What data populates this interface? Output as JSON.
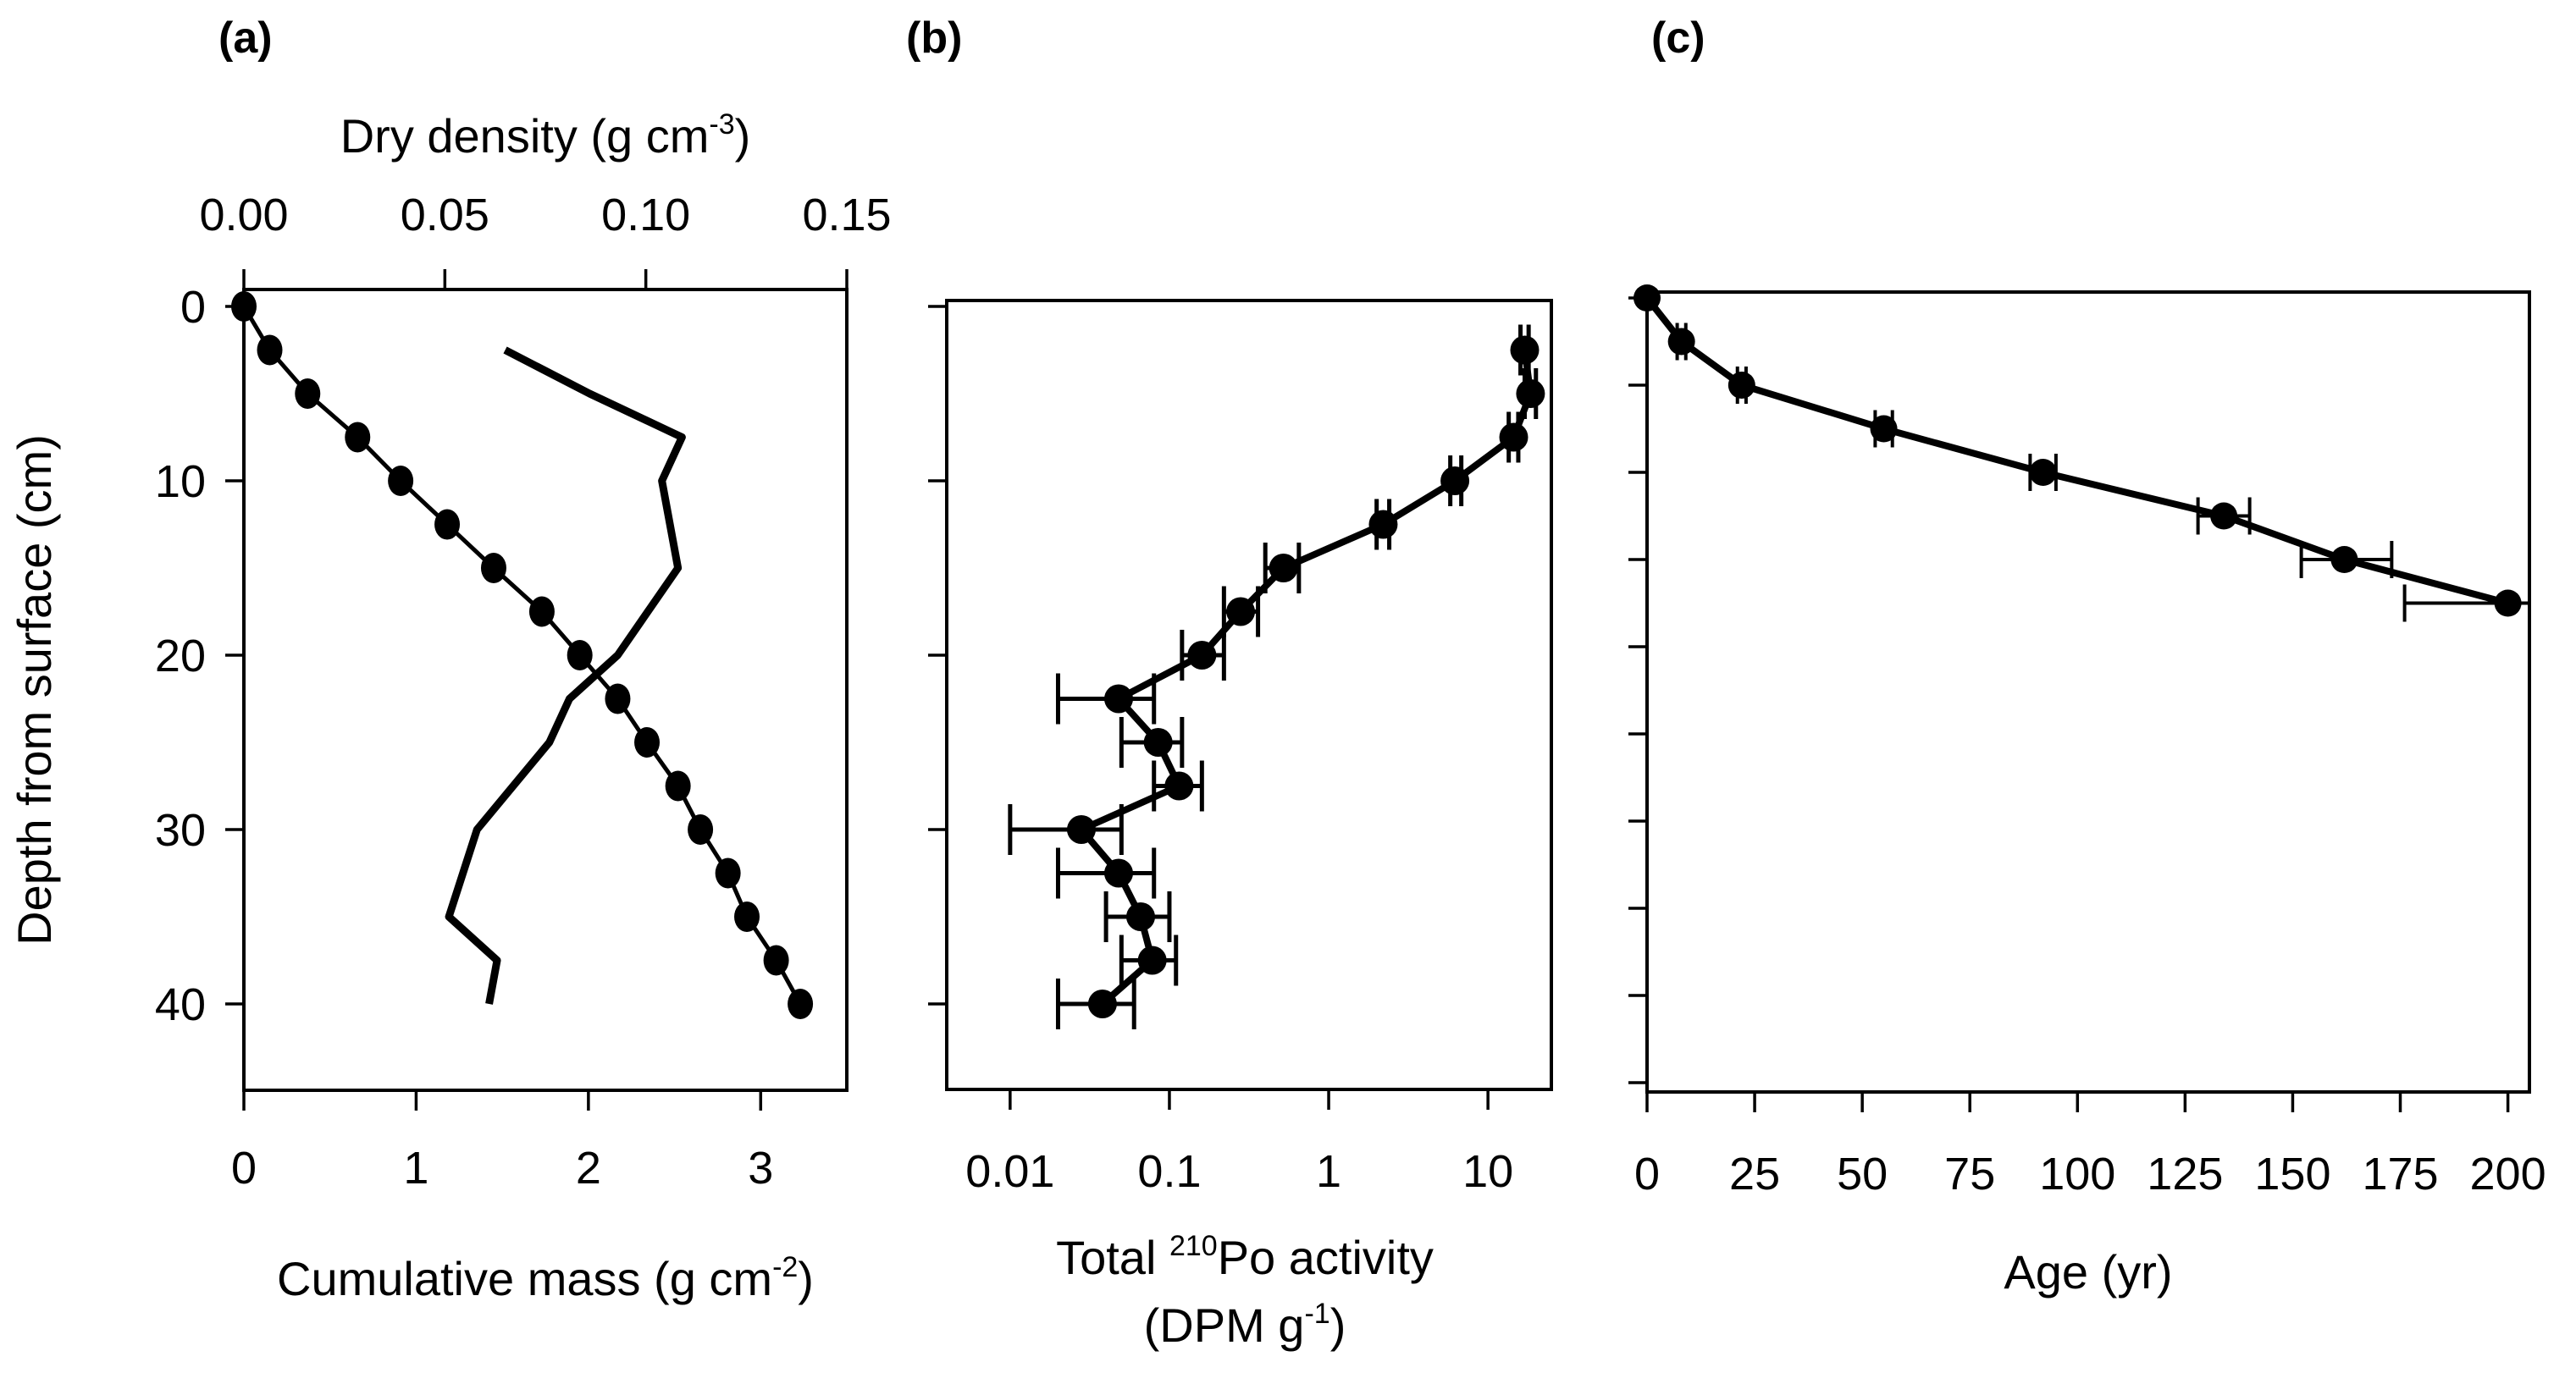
{
  "chart_data": [
    {
      "panel_label": "(a)",
      "type": "line",
      "ylabel": "Depth from surface (cm)",
      "ylim": [
        45,
        0
      ],
      "yticks": [
        "0",
        "10",
        "20",
        "30",
        "40"
      ],
      "x_bottom": {
        "label": "Cumulative mass (g cm",
        "label_sup": "-2",
        "label_end": ")",
        "lim": [
          0,
          3.5
        ],
        "ticks": [
          "0",
          "1",
          "2",
          "3"
        ]
      },
      "x_top": {
        "label": "Dry density (g cm",
        "label_sup": "-3",
        "label_end": ")",
        "lim": [
          0,
          0.15
        ],
        "ticks": [
          "0.00",
          "0.05",
          "0.10",
          "0.15"
        ]
      },
      "series": [
        {
          "name": "Cumulative mass",
          "axis": "bottom",
          "markers": true,
          "depth": [
            0,
            2.5,
            5,
            7.5,
            10,
            12.5,
            15,
            17.5,
            20,
            22.5,
            25,
            27.5,
            30,
            32.5,
            35,
            37.5,
            40
          ],
          "values": [
            0,
            0.15,
            0.37,
            0.66,
            0.91,
            1.18,
            1.45,
            1.73,
            1.95,
            2.17,
            2.34,
            2.52,
            2.65,
            2.81,
            2.92,
            3.09,
            3.23
          ]
        },
        {
          "name": "Dry density",
          "axis": "top",
          "markers": false,
          "depth": [
            2.5,
            5,
            7.5,
            10,
            15,
            20,
            22.5,
            25,
            30,
            35,
            37.5,
            40
          ],
          "values": [
            0.065,
            0.086,
            0.109,
            0.104,
            0.108,
            0.093,
            0.081,
            0.076,
            0.058,
            0.051,
            0.063,
            0.061
          ]
        }
      ]
    },
    {
      "panel_label": "(b)",
      "type": "line",
      "ylim": [
        45,
        0
      ],
      "xscale": "log",
      "x_bottom": {
        "label_pre": "Total ",
        "label_sup": "210",
        "label": "Po activity",
        "label2": "(DPM g",
        "label2_sup": "-1",
        "label2_end": ")",
        "lim": [
          0.004,
          25
        ],
        "ticks": [
          "0.01",
          "0.1",
          "1",
          "10"
        ],
        "tick_values": [
          0.01,
          0.1,
          1,
          10
        ]
      },
      "series": [
        {
          "name": "Total 210Po activity",
          "markers": true,
          "depth": [
            2.5,
            5,
            7.5,
            10,
            12.5,
            15,
            17.5,
            20,
            22.5,
            25,
            27.5,
            30,
            32.5,
            35,
            37.5,
            40
          ],
          "values": [
            17,
            18.5,
            14.5,
            6.2,
            2.2,
            0.52,
            0.28,
            0.16,
            0.048,
            0.085,
            0.115,
            0.028,
            0.048,
            0.066,
            0.078,
            0.038
          ],
          "err_low": [
            16,
            17,
            13.5,
            5.8,
            2.0,
            0.4,
            0.22,
            0.12,
            0.02,
            0.05,
            0.08,
            0.01,
            0.02,
            0.04,
            0.05,
            0.02
          ],
          "err_high": [
            18,
            20,
            15.5,
            6.8,
            2.4,
            0.65,
            0.36,
            0.22,
            0.08,
            0.12,
            0.16,
            0.05,
            0.08,
            0.1,
            0.11,
            0.06
          ]
        }
      ]
    },
    {
      "panel_label": "(c)",
      "type": "line",
      "ylim": [
        45,
        0
      ],
      "x_bottom": {
        "label": "Age (yr)",
        "lim": [
          0,
          205
        ],
        "ticks": [
          "0",
          "25",
          "50",
          "75",
          "100",
          "125",
          "150",
          "175",
          "200"
        ],
        "tick_values": [
          0,
          25,
          50,
          75,
          100,
          125,
          150,
          175,
          200
        ]
      },
      "series": [
        {
          "name": "Age",
          "markers": true,
          "depth": [
            0,
            2.5,
            5,
            7.5,
            10,
            12.5,
            15,
            17.5
          ],
          "values": [
            0,
            8,
            22,
            55,
            92,
            134,
            162,
            200
          ],
          "err_low": [
            0,
            7,
            21,
            53,
            89,
            128,
            152,
            176
          ],
          "err_high": [
            0,
            9,
            23,
            57,
            95,
            140,
            173,
            205
          ]
        }
      ]
    }
  ]
}
